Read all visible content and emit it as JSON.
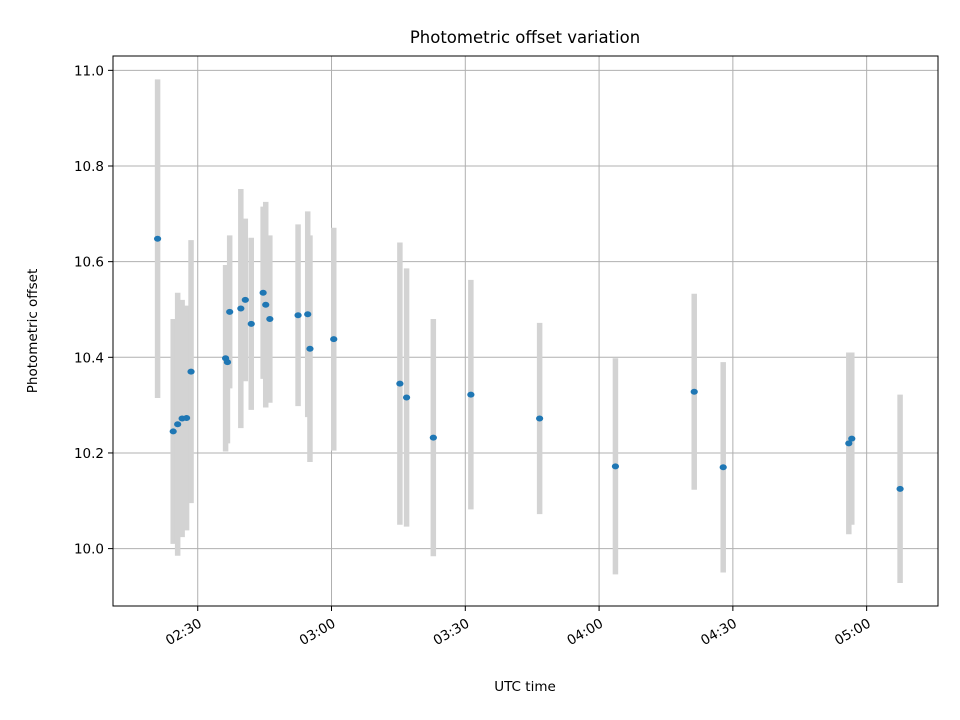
{
  "chart_data": {
    "type": "scatter",
    "title": "Photometric offset variation",
    "xlabel": "UTC time",
    "ylabel": "Photometric offset",
    "x_tick_labels": [
      "02:30",
      "03:00",
      "03:30",
      "04:00",
      "04:30",
      "05:00"
    ],
    "x_tick_values": [
      "02:30",
      "03:00",
      "03:30",
      "04:00",
      "04:30",
      "05:00"
    ],
    "y_tick_labels": [
      "10.0",
      "10.2",
      "10.4",
      "10.6",
      "10.8",
      "11.0"
    ],
    "y_tick_values": [
      10.0,
      10.2,
      10.4,
      10.6,
      10.8,
      11.0
    ],
    "xlim": [
      "02:11",
      "05:16"
    ],
    "ylim": [
      9.88,
      11.03
    ],
    "grid": true,
    "legend": "none",
    "colors": {
      "points": "#1f77b4",
      "errorbars": "#d3d3d3",
      "grid": "#b0b0b0"
    },
    "points": [
      {
        "x": "02:21:00",
        "y": 10.648,
        "err": 0.333
      },
      {
        "x": "02:24:30",
        "y": 10.245,
        "err": 0.235
      },
      {
        "x": "02:25:30",
        "y": 10.26,
        "err": 0.275
      },
      {
        "x": "02:26:30",
        "y": 10.272,
        "err": 0.248
      },
      {
        "x": "02:27:30",
        "y": 10.273,
        "err": 0.235
      },
      {
        "x": "02:28:30",
        "y": 10.37,
        "err": 0.275
      },
      {
        "x": "02:36:15",
        "y": 10.398,
        "err": 0.195
      },
      {
        "x": "02:36:40",
        "y": 10.39,
        "err": 0.17
      },
      {
        "x": "02:37:10",
        "y": 10.495,
        "err": 0.16
      },
      {
        "x": "02:39:40",
        "y": 10.502,
        "err": 0.25
      },
      {
        "x": "02:40:40",
        "y": 10.52,
        "err": 0.17
      },
      {
        "x": "02:42:00",
        "y": 10.47,
        "err": 0.18
      },
      {
        "x": "02:44:40",
        "y": 10.535,
        "err": 0.18
      },
      {
        "x": "02:45:15",
        "y": 10.51,
        "err": 0.215
      },
      {
        "x": "02:46:10",
        "y": 10.48,
        "err": 0.175
      },
      {
        "x": "02:52:30",
        "y": 10.488,
        "err": 0.19
      },
      {
        "x": "02:54:40",
        "y": 10.49,
        "err": 0.215
      },
      {
        "x": "02:55:10",
        "y": 10.418,
        "err": 0.237
      },
      {
        "x": "03:00:30",
        "y": 10.438,
        "err": 0.233
      },
      {
        "x": "03:15:20",
        "y": 10.345,
        "err": 0.295
      },
      {
        "x": "03:16:50",
        "y": 10.316,
        "err": 0.27
      },
      {
        "x": "03:22:50",
        "y": 10.232,
        "err": 0.248
      },
      {
        "x": "03:31:15",
        "y": 10.322,
        "err": 0.24
      },
      {
        "x": "03:46:40",
        "y": 10.272,
        "err": 0.2
      },
      {
        "x": "04:03:40",
        "y": 10.172,
        "err": 0.226
      },
      {
        "x": "04:21:20",
        "y": 10.328,
        "err": 0.205
      },
      {
        "x": "04:27:50",
        "y": 10.17,
        "err": 0.22
      },
      {
        "x": "04:56:00",
        "y": 10.22,
        "err": 0.19
      },
      {
        "x": "04:56:40",
        "y": 10.23,
        "err": 0.18
      },
      {
        "x": "05:07:30",
        "y": 10.125,
        "err": 0.197
      }
    ]
  }
}
